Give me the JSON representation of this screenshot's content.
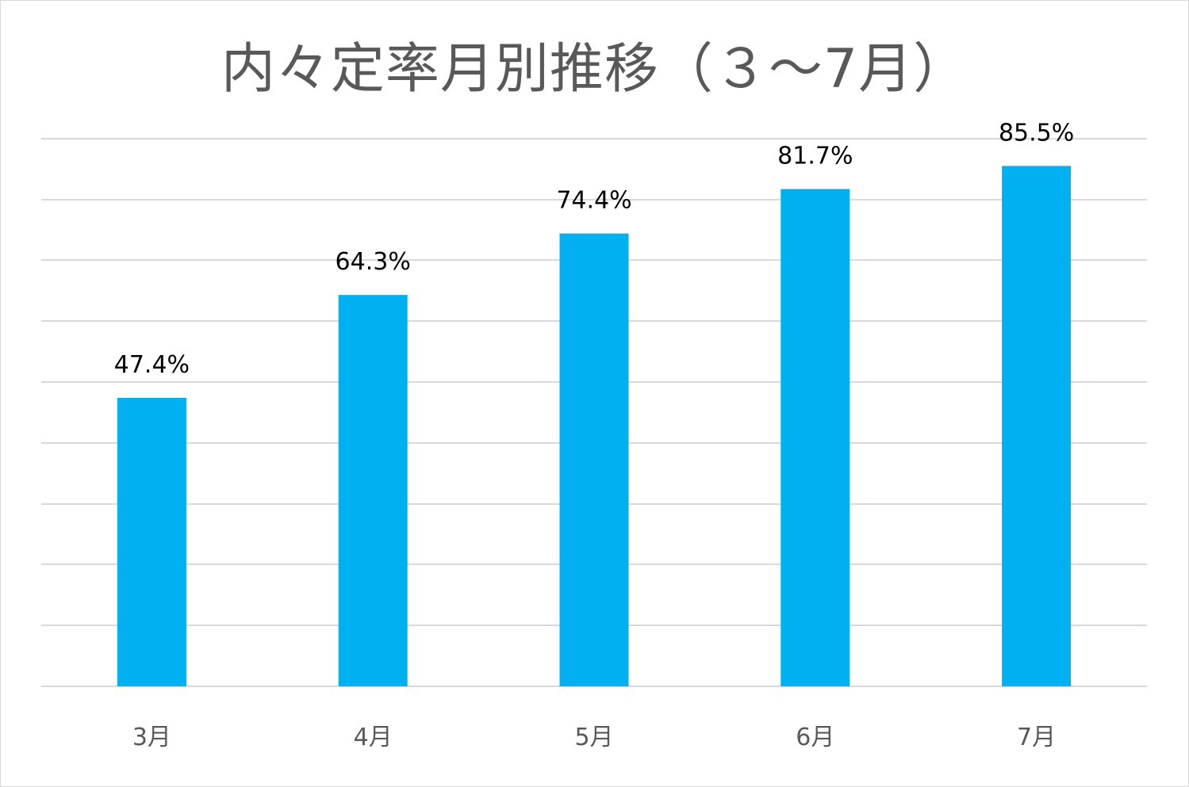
{
  "chart_data": {
    "type": "bar",
    "title": "内々定率月別推移（３～7月）",
    "categories": [
      "3月",
      "4月",
      "5月",
      "6月",
      "7月"
    ],
    "values": [
      47.4,
      64.3,
      74.4,
      81.7,
      85.5
    ],
    "value_labels": [
      "47.4%",
      "64.3%",
      "74.4%",
      "81.7%",
      "85.5%"
    ],
    "value_unit": "%",
    "xlabel": "",
    "ylabel": "",
    "ylim": [
      0,
      90
    ],
    "ytick_step": 10,
    "y_axis_labels_shown": false,
    "grid": true,
    "legend": "none",
    "colors": {
      "bar": "#00b0f0",
      "grid": "#d9d9d9",
      "title": "#595959",
      "tick_label": "#595959",
      "data_label": "#000000"
    }
  }
}
